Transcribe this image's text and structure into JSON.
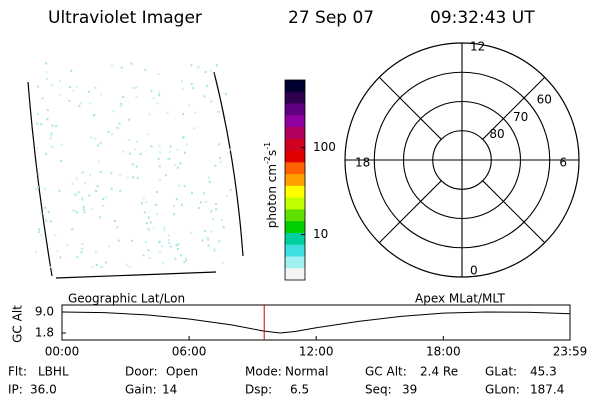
{
  "header": {
    "title": "Ultraviolet Imager",
    "date": "27 Sep 07",
    "time": "09:32:43 UT"
  },
  "chart_data": [
    {
      "type": "colorbar",
      "label": [
        "photon cm",
        "-2",
        "s",
        "-1"
      ],
      "log": true,
      "clim": [
        3,
        600
      ],
      "cticks": [
        10,
        100
      ],
      "colors": [
        "#000030",
        "#300050",
        "#600080",
        "#9000a0",
        "#b00060",
        "#d00020",
        "#e00000",
        "#ff6000",
        "#ffa000",
        "#ffff00",
        "#c0ff00",
        "#60e000",
        "#00d000",
        "#00d0a0",
        "#40e0e0",
        "#a0f0f0",
        "#f4f4f4"
      ]
    },
    {
      "type": "polar",
      "rlim": [
        90,
        50
      ],
      "rticks": [
        60,
        70,
        80
      ],
      "thetalim": [
        0,
        24
      ],
      "thetaticks": [
        0,
        6,
        12,
        18
      ]
    },
    {
      "type": "line",
      "annotations": [
        "Geographic Lat/Lon",
        "Apex MLat/MLT"
      ],
      "ylabel": "GC Alt",
      "x": [
        0,
        2,
        4,
        6,
        8,
        9.5,
        10.3,
        11,
        12,
        14,
        16,
        18,
        20,
        22,
        23.98
      ],
      "series": [
        {
          "color": "#000000",
          "values": [
            9.0,
            8.8,
            8.0,
            6.6,
            4.6,
            2.5,
            1.8,
            2.3,
            3.6,
            5.8,
            7.5,
            8.6,
            9.0,
            8.9,
            8.4
          ]
        }
      ],
      "marker_x": 9.545,
      "marker_color": "#cc0000",
      "xlim": [
        0,
        23.98
      ],
      "xticks": [
        {
          "value": 0,
          "label": "00:00"
        },
        {
          "value": 6,
          "label": "06:00"
        },
        {
          "value": 12,
          "label": "12:00"
        },
        {
          "value": 18,
          "label": "18:00"
        },
        {
          "value": 23.98,
          "label": "23:59"
        }
      ],
      "ylim": [
        -0.6,
        11.4
      ],
      "yticks": [
        1.8,
        {
          "value": 9,
          "label": "9.0"
        }
      ]
    }
  ],
  "status": [
    [
      {
        "label": "Flt:",
        "value": "LBHL"
      },
      {
        "label": "Door:",
        "value": "Open"
      },
      {
        "label": "Mode:",
        "value": "Normal"
      },
      {
        "label": "GC Alt:",
        "value": "2.4 Re"
      },
      {
        "label": "GLat:",
        "value": "45.3"
      }
    ],
    [
      {
        "label": "IP:",
        "value": "36.0"
      },
      {
        "label": "Gain:",
        "value": "14"
      },
      {
        "label": "Dsp:",
        "value": "6.5"
      },
      {
        "label": "Seq:",
        "value": "39"
      },
      {
        "label": "GLon:",
        "value": "187.4"
      }
    ]
  ]
}
